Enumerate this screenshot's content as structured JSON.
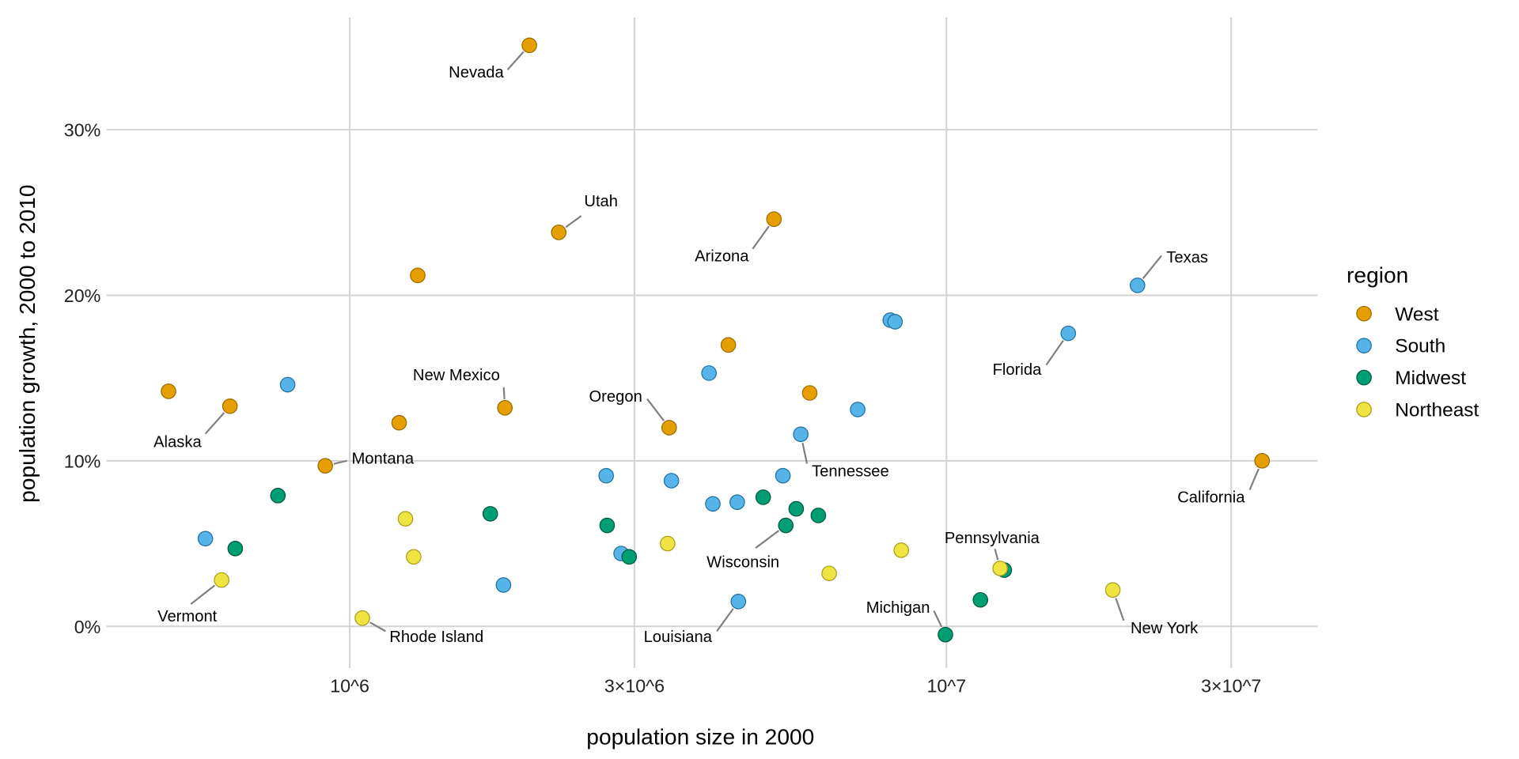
{
  "chart_data": {
    "type": "scatter",
    "xlabel": "population size in 2000",
    "ylabel": "population growth, 2000 to 2010",
    "x_scale": "log",
    "xlim": [
      380000,
      45000000
    ],
    "ylim": [
      -2.5,
      35.5
    ],
    "x_ticks": [
      {
        "value": 1000000,
        "label": "10^6"
      },
      {
        "value": 3000000,
        "label": "3×10^6"
      },
      {
        "value": 10000000,
        "label": "10^7"
      },
      {
        "value": 30000000,
        "label": "3×10^7"
      }
    ],
    "y_ticks": [
      {
        "value": 0,
        "label": "0%"
      },
      {
        "value": 10,
        "label": "10%"
      },
      {
        "value": 20,
        "label": "20%"
      },
      {
        "value": 30,
        "label": "30%"
      }
    ],
    "grid": true,
    "legend": {
      "title": "region",
      "placement": "right",
      "entries": [
        {
          "name": "West",
          "color": "#E69F00"
        },
        {
          "name": "South",
          "color": "#56B4E9"
        },
        {
          "name": "Midwest",
          "color": "#009E73"
        },
        {
          "name": "Northeast",
          "color": "#F0E442"
        }
      ]
    },
    "points": [
      {
        "region": "West",
        "x": 2000000,
        "y": 35.1,
        "label": "Nevada"
      },
      {
        "region": "West",
        "x": 2240000,
        "y": 23.8,
        "label": "Utah"
      },
      {
        "region": "West",
        "x": 5140000,
        "y": 24.6,
        "label": "Arizona"
      },
      {
        "region": "West",
        "x": 1300000,
        "y": 21.2
      },
      {
        "region": "West",
        "x": 630000,
        "y": 13.3,
        "label": "Alaska"
      },
      {
        "region": "West",
        "x": 497000,
        "y": 14.2
      },
      {
        "region": "West",
        "x": 1210000,
        "y": 12.3
      },
      {
        "region": "West",
        "x": 1820000,
        "y": 13.2,
        "label": "New Mexico"
      },
      {
        "region": "West",
        "x": 910000,
        "y": 9.7,
        "label": "Montana"
      },
      {
        "region": "West",
        "x": 3430000,
        "y": 12.0,
        "label": "Oregon"
      },
      {
        "region": "West",
        "x": 4310000,
        "y": 17.0
      },
      {
        "region": "West",
        "x": 5900000,
        "y": 14.1
      },
      {
        "region": "West",
        "x": 33800000,
        "y": 10.0,
        "label": "California"
      },
      {
        "region": "South",
        "x": 20900000,
        "y": 20.6,
        "label": "Texas"
      },
      {
        "region": "South",
        "x": 16000000,
        "y": 17.7,
        "label": "Florida"
      },
      {
        "region": "South",
        "x": 8050000,
        "y": 18.5
      },
      {
        "region": "South",
        "x": 8200000,
        "y": 18.4
      },
      {
        "region": "South",
        "x": 4000000,
        "y": 15.3
      },
      {
        "region": "South",
        "x": 787000,
        "y": 14.6
      },
      {
        "region": "South",
        "x": 7100000,
        "y": 13.1
      },
      {
        "region": "South",
        "x": 5700000,
        "y": 11.6,
        "label": "Tennessee"
      },
      {
        "region": "South",
        "x": 2690000,
        "y": 9.1
      },
      {
        "region": "South",
        "x": 3460000,
        "y": 8.8
      },
      {
        "region": "South",
        "x": 4060000,
        "y": 7.4
      },
      {
        "region": "South",
        "x": 4460000,
        "y": 7.5
      },
      {
        "region": "South",
        "x": 5320000,
        "y": 9.1
      },
      {
        "region": "South",
        "x": 573000,
        "y": 5.3
      },
      {
        "region": "South",
        "x": 2850000,
        "y": 4.4
      },
      {
        "region": "South",
        "x": 1810000,
        "y": 2.5
      },
      {
        "region": "South",
        "x": 4480000,
        "y": 1.5,
        "label": "Louisiana"
      },
      {
        "region": "Midwest",
        "x": 758000,
        "y": 7.9
      },
      {
        "region": "Midwest",
        "x": 643000,
        "y": 4.7
      },
      {
        "region": "Midwest",
        "x": 1720000,
        "y": 6.8
      },
      {
        "region": "Midwest",
        "x": 2700000,
        "y": 6.1
      },
      {
        "region": "Midwest",
        "x": 2940000,
        "y": 4.2
      },
      {
        "region": "Midwest",
        "x": 4930000,
        "y": 7.8
      },
      {
        "region": "Midwest",
        "x": 5600000,
        "y": 7.1
      },
      {
        "region": "Midwest",
        "x": 5380000,
        "y": 6.1,
        "label": "Wisconsin"
      },
      {
        "region": "Midwest",
        "x": 6100000,
        "y": 6.7
      },
      {
        "region": "Midwest",
        "x": 9960000,
        "y": -0.5,
        "label": "Michigan"
      },
      {
        "region": "Midwest",
        "x": 11400000,
        "y": 1.6
      },
      {
        "region": "Midwest",
        "x": 12500000,
        "y": 3.4
      },
      {
        "region": "Northeast",
        "x": 610000,
        "y": 2.8,
        "label": "Vermont"
      },
      {
        "region": "Northeast",
        "x": 1240000,
        "y": 6.5
      },
      {
        "region": "Northeast",
        "x": 1280000,
        "y": 4.2
      },
      {
        "region": "Northeast",
        "x": 1050000,
        "y": 0.5,
        "label": "Rhode Island"
      },
      {
        "region": "Northeast",
        "x": 3410000,
        "y": 5.0
      },
      {
        "region": "Northeast",
        "x": 6360000,
        "y": 3.2
      },
      {
        "region": "Northeast",
        "x": 8400000,
        "y": 4.6
      },
      {
        "region": "Northeast",
        "x": 12300000,
        "y": 3.5,
        "label": "Pennsylvania"
      },
      {
        "region": "Northeast",
        "x": 19000000,
        "y": 2.2,
        "label": "New York"
      }
    ]
  }
}
